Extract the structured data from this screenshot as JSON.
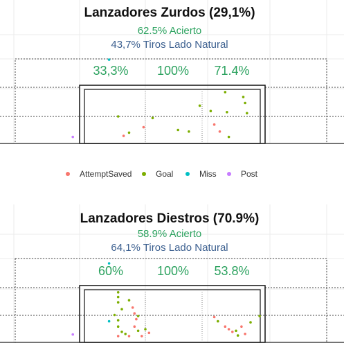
{
  "chart_data": [
    {
      "type": "scatter",
      "title": "Lanzadores Zurdos (29,1%)",
      "accuracy_label": "62.5% Acierto",
      "natural_label": "43,7% Tiros Lado Natural",
      "zone_pcts": [
        "33,3%",
        "100%",
        "71.4%"
      ],
      "points": [
        {
          "x": 0.27,
          "y": 0.5,
          "cat": "Goal"
        },
        {
          "x": 0.33,
          "y": 0.2,
          "cat": "Goal"
        },
        {
          "x": 0.41,
          "y": 0.3,
          "cat": "AttemptSaved"
        },
        {
          "x": 0.46,
          "y": 0.47,
          "cat": "Goal"
        },
        {
          "x": 0.6,
          "y": 0.25,
          "cat": "Goal"
        },
        {
          "x": 0.66,
          "y": 0.22,
          "cat": "Goal"
        },
        {
          "x": 0.72,
          "y": 0.7,
          "cat": "Goal"
        },
        {
          "x": 0.78,
          "y": 0.6,
          "cat": "Goal"
        },
        {
          "x": 0.8,
          "y": 0.35,
          "cat": "AttemptSaved"
        },
        {
          "x": 0.83,
          "y": 0.22,
          "cat": "AttemptSaved"
        },
        {
          "x": 0.87,
          "y": 0.58,
          "cat": "Goal"
        },
        {
          "x": 0.88,
          "y": 0.12,
          "cat": "Goal"
        },
        {
          "x": 0.86,
          "y": 0.95,
          "cat": "Goal"
        },
        {
          "x": 0.97,
          "y": 0.75,
          "cat": "Goal"
        },
        {
          "x": 0.96,
          "y": 0.86,
          "cat": "Goal"
        },
        {
          "x": 0.98,
          "y": 0.56,
          "cat": "Goal"
        },
        {
          "x": 0.3,
          "y": 0.14,
          "cat": "AttemptSaved"
        },
        {
          "x": 0.22,
          "y": 1.55,
          "cat": "Miss"
        },
        {
          "x": 0.02,
          "y": 0.12,
          "cat": "Post"
        }
      ]
    },
    {
      "type": "scatter",
      "title": "Lanzadores Diestros (70.9%)",
      "accuracy_label": "58.9% Acierto",
      "natural_label": "64,1% Tiros Lado Natural",
      "zone_pcts": [
        "60%",
        "100%",
        "53.8%"
      ],
      "points": [
        {
          "x": 0.27,
          "y": 0.95,
          "cat": "Goal"
        },
        {
          "x": 0.27,
          "y": 0.86,
          "cat": "Goal"
        },
        {
          "x": 0.27,
          "y": 0.76,
          "cat": "Goal"
        },
        {
          "x": 0.29,
          "y": 0.63,
          "cat": "Goal"
        },
        {
          "x": 0.25,
          "y": 0.52,
          "cat": "Goal"
        },
        {
          "x": 0.27,
          "y": 0.42,
          "cat": "Goal"
        },
        {
          "x": 0.27,
          "y": 0.3,
          "cat": "Goal"
        },
        {
          "x": 0.29,
          "y": 0.2,
          "cat": "Goal"
        },
        {
          "x": 0.27,
          "y": 0.12,
          "cat": "AttemptSaved"
        },
        {
          "x": 0.33,
          "y": 0.8,
          "cat": "Goal"
        },
        {
          "x": 0.35,
          "y": 0.66,
          "cat": "AttemptSaved"
        },
        {
          "x": 0.36,
          "y": 0.55,
          "cat": "AttemptSaved"
        },
        {
          "x": 0.38,
          "y": 0.5,
          "cat": "Goal"
        },
        {
          "x": 0.37,
          "y": 0.44,
          "cat": "AttemptSaved"
        },
        {
          "x": 0.36,
          "y": 0.3,
          "cat": "AttemptSaved"
        },
        {
          "x": 0.38,
          "y": 0.22,
          "cat": "Goal"
        },
        {
          "x": 0.4,
          "y": 0.12,
          "cat": "AttemptSaved"
        },
        {
          "x": 0.33,
          "y": 0.12,
          "cat": "AttemptSaved"
        },
        {
          "x": 0.31,
          "y": 0.16,
          "cat": "Goal"
        },
        {
          "x": 0.42,
          "y": 0.25,
          "cat": "Goal"
        },
        {
          "x": 0.44,
          "y": 0.18,
          "cat": "AttemptSaved"
        },
        {
          "x": 0.8,
          "y": 0.48,
          "cat": "AttemptSaved"
        },
        {
          "x": 0.82,
          "y": 0.4,
          "cat": "Goal"
        },
        {
          "x": 0.86,
          "y": 0.3,
          "cat": "AttemptSaved"
        },
        {
          "x": 0.88,
          "y": 0.25,
          "cat": "AttemptSaved"
        },
        {
          "x": 0.9,
          "y": 0.2,
          "cat": "AttemptSaved"
        },
        {
          "x": 0.92,
          "y": 0.22,
          "cat": "Goal"
        },
        {
          "x": 0.93,
          "y": 0.13,
          "cat": "Goal"
        },
        {
          "x": 0.95,
          "y": 0.3,
          "cat": "AttemptSaved"
        },
        {
          "x": 0.97,
          "y": 0.16,
          "cat": "AttemptSaved"
        },
        {
          "x": 1.0,
          "y": 0.38,
          "cat": "Goal"
        },
        {
          "x": 1.05,
          "y": 0.5,
          "cat": "Goal"
        },
        {
          "x": 0.22,
          "y": 1.5,
          "cat": "Miss"
        },
        {
          "x": 0.22,
          "y": 0.4,
          "cat": "Miss"
        },
        {
          "x": 0.02,
          "y": 0.15,
          "cat": "Post"
        }
      ]
    }
  ],
  "legend": [
    {
      "label": "AttemptSaved",
      "color": "#f8766d"
    },
    {
      "label": "Goal",
      "color": "#7cae00"
    },
    {
      "label": "Miss",
      "color": "#00bfc4"
    },
    {
      "label": "Post",
      "color": "#c77cff"
    }
  ],
  "colors": {
    "AttemptSaved": "#f8766d",
    "Goal": "#7cae00",
    "Miss": "#00bfc4",
    "Post": "#c77cff"
  }
}
